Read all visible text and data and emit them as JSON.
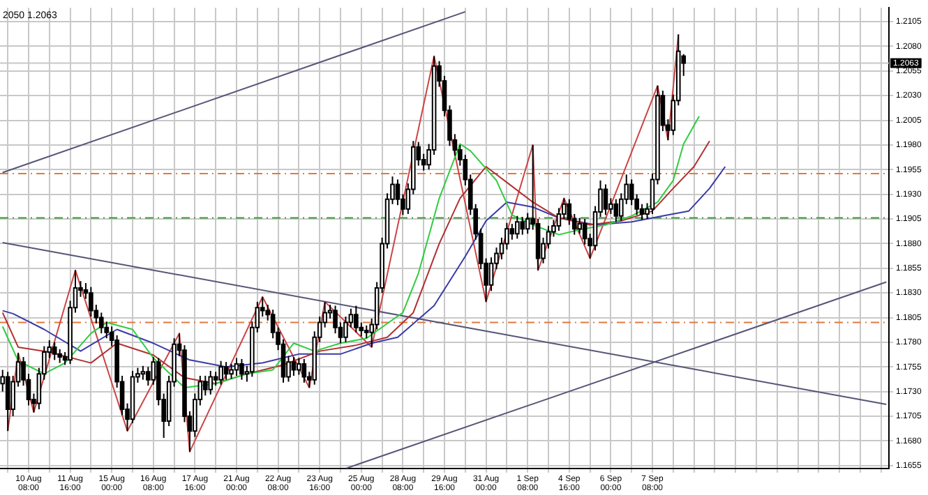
{
  "chart_data": {
    "type": "candlestick",
    "categories": [
      null,
      null,
      null,
      null,
      null,
      "10 Aug 08:00",
      null,
      null,
      null,
      null,
      null,
      null,
      null,
      "11 Aug 16:00",
      null,
      null,
      null,
      null,
      null,
      null,
      null,
      "15 Aug 00:00",
      null,
      null,
      null,
      null,
      null,
      null,
      null,
      "16 Aug 08:00",
      null,
      null,
      null,
      null,
      null,
      null,
      null,
      "17 Aug 16:00",
      null,
      null,
      null,
      null,
      null,
      null,
      null,
      "21 Aug 00:00",
      null,
      null,
      null,
      null,
      null,
      null,
      null,
      "22 Aug 08:00",
      null,
      null,
      null,
      null,
      null,
      null,
      null,
      "23 Aug 16:00",
      null,
      null,
      null,
      null,
      null,
      null,
      null,
      "25 Aug 00:00",
      null,
      null,
      null,
      null,
      null,
      null,
      null,
      "28 Aug 08:00",
      null,
      null,
      null,
      null,
      null,
      null,
      null,
      "29 Aug 16:00",
      null,
      null,
      null,
      null,
      null,
      null,
      null,
      "31 Aug 00:00",
      null,
      null,
      null,
      null,
      null,
      null,
      null,
      "1 Sep 08:00",
      null,
      null,
      null,
      null,
      null,
      null,
      null,
      "4 Sep 16:00",
      null,
      null,
      null,
      null,
      null,
      null,
      null,
      "6 Sep 00:00",
      null,
      null,
      null,
      null,
      null,
      null,
      null,
      "7 Sep 08:00",
      null,
      null,
      null,
      null,
      null,
      null,
      null,
      null,
      null,
      null,
      null,
      null,
      null,
      null,
      null,
      null,
      null,
      null,
      null,
      null,
      null,
      null,
      null,
      null,
      null,
      null,
      null,
      null,
      null,
      null,
      null,
      null,
      null,
      null,
      null,
      null,
      null,
      null,
      null,
      null,
      null,
      null,
      null,
      null,
      null
    ],
    "ohlc": [
      [
        1.1738,
        1.1752,
        1.173,
        1.1745
      ],
      [
        1.1745,
        1.175,
        1.169,
        1.1712
      ],
      [
        1.1712,
        1.1746,
        1.1705,
        1.174
      ],
      [
        1.174,
        1.1769,
        1.1735,
        1.176
      ],
      [
        1.176,
        1.1765,
        1.1736,
        1.1742
      ],
      [
        1.1742,
        1.1748,
        1.1716,
        1.1722
      ],
      [
        1.1722,
        1.1728,
        1.1709,
        1.1718
      ],
      [
        1.1718,
        1.1754,
        1.1712,
        1.1748
      ],
      [
        1.1748,
        1.1776,
        1.1742,
        1.177
      ],
      [
        1.177,
        1.1782,
        1.1764,
        1.1775
      ],
      [
        1.1775,
        1.178,
        1.1762,
        1.1768
      ],
      [
        1.1768,
        1.1773,
        1.1759,
        1.1765
      ],
      [
        1.1765,
        1.177,
        1.1757,
        1.1762
      ],
      [
        1.1762,
        1.1822,
        1.1758,
        1.1815
      ],
      [
        1.1815,
        1.1853,
        1.181,
        1.1835
      ],
      [
        1.1835,
        1.1842,
        1.1826,
        1.1833
      ],
      [
        1.1833,
        1.184,
        1.1824,
        1.183
      ],
      [
        1.183,
        1.1836,
        1.1806,
        1.1812
      ],
      [
        1.1812,
        1.1818,
        1.1799,
        1.1805
      ],
      [
        1.1805,
        1.181,
        1.1789,
        1.1795
      ],
      [
        1.1795,
        1.1801,
        1.1784,
        1.179
      ],
      [
        1.179,
        1.1796,
        1.1776,
        1.1782
      ],
      [
        1.1782,
        1.1787,
        1.1734,
        1.174
      ],
      [
        1.174,
        1.1746,
        1.1706,
        1.1712
      ],
      [
        1.1712,
        1.1718,
        1.169,
        1.1702
      ],
      [
        1.1702,
        1.1751,
        1.1698,
        1.1745
      ],
      [
        1.1745,
        1.1754,
        1.1739,
        1.1748
      ],
      [
        1.1748,
        1.1756,
        1.1742,
        1.175
      ],
      [
        1.175,
        1.1755,
        1.1736,
        1.1742
      ],
      [
        1.1742,
        1.1765,
        1.1737,
        1.176
      ],
      [
        1.176,
        1.1764,
        1.1716,
        1.1722
      ],
      [
        1.1722,
        1.1728,
        1.1683,
        1.17
      ],
      [
        1.17,
        1.1746,
        1.1695,
        1.174
      ],
      [
        1.174,
        1.1784,
        1.1735,
        1.1778
      ],
      [
        1.1778,
        1.1789,
        1.1766,
        1.1772
      ],
      [
        1.1772,
        1.1777,
        1.1699,
        1.1705
      ],
      [
        1.1705,
        1.171,
        1.1669,
        1.169
      ],
      [
        1.169,
        1.1728,
        1.1684,
        1.1722
      ],
      [
        1.1722,
        1.1746,
        1.1716,
        1.174
      ],
      [
        1.174,
        1.1746,
        1.1726,
        1.1732
      ],
      [
        1.1732,
        1.1751,
        1.1727,
        1.1745
      ],
      [
        1.1745,
        1.175,
        1.1736,
        1.1742
      ],
      [
        1.1742,
        1.1761,
        1.1737,
        1.1755
      ],
      [
        1.1755,
        1.176,
        1.1742,
        1.1748
      ],
      [
        1.1748,
        1.1758,
        1.1743,
        1.1752
      ],
      [
        1.1752,
        1.1764,
        1.1746,
        1.1758
      ],
      [
        1.1758,
        1.1763,
        1.1742,
        1.1748
      ],
      [
        1.1748,
        1.1756,
        1.174,
        1.175
      ],
      [
        1.175,
        1.1801,
        1.1745,
        1.1795
      ],
      [
        1.1795,
        1.1821,
        1.179,
        1.1815
      ],
      [
        1.1815,
        1.1826,
        1.1806,
        1.1812
      ],
      [
        1.1812,
        1.1818,
        1.1802,
        1.1808
      ],
      [
        1.1808,
        1.1813,
        1.1784,
        1.179
      ],
      [
        1.179,
        1.1795,
        1.1772,
        1.1778
      ],
      [
        1.1778,
        1.1783,
        1.1739,
        1.1745
      ],
      [
        1.1745,
        1.1766,
        1.174,
        1.176
      ],
      [
        1.176,
        1.1765,
        1.1746,
        1.1752
      ],
      [
        1.1752,
        1.1764,
        1.1747,
        1.1758
      ],
      [
        1.1758,
        1.1763,
        1.1739,
        1.1745
      ],
      [
        1.1745,
        1.175,
        1.1734,
        1.1742
      ],
      [
        1.1742,
        1.1791,
        1.1737,
        1.1785
      ],
      [
        1.1785,
        1.1806,
        1.178,
        1.18
      ],
      [
        1.18,
        1.1821,
        1.1795,
        1.181
      ],
      [
        1.181,
        1.1818,
        1.1804,
        1.1812
      ],
      [
        1.1812,
        1.1817,
        1.1789,
        1.1795
      ],
      [
        1.1795,
        1.18,
        1.1779,
        1.1785
      ],
      [
        1.1785,
        1.1806,
        1.178,
        1.18
      ],
      [
        1.18,
        1.1814,
        1.1795,
        1.1808
      ],
      [
        1.1808,
        1.1817,
        1.179,
        1.1795
      ],
      [
        1.1795,
        1.18,
        1.1786,
        1.1792
      ],
      [
        1.1792,
        1.1797,
        1.1784,
        1.179
      ],
      [
        1.179,
        1.1804,
        1.1775,
        1.1798
      ],
      [
        1.1798,
        1.1841,
        1.1793,
        1.1835
      ],
      [
        1.1835,
        1.1886,
        1.183,
        1.188
      ],
      [
        1.188,
        1.1931,
        1.1875,
        1.1925
      ],
      [
        1.1925,
        1.1948,
        1.192,
        1.194
      ],
      [
        1.194,
        1.1945,
        1.1919,
        1.1925
      ],
      [
        1.1925,
        1.193,
        1.1909,
        1.1915
      ],
      [
        1.1915,
        1.1941,
        1.191,
        1.1935
      ],
      [
        1.1935,
        1.1984,
        1.193,
        1.1978
      ],
      [
        1.1978,
        1.1983,
        1.1959,
        1.1965
      ],
      [
        1.1965,
        1.1971,
        1.1954,
        1.196
      ],
      [
        1.196,
        1.1981,
        1.1955,
        1.1975
      ],
      [
        1.1975,
        1.207,
        1.197,
        1.206
      ],
      [
        1.206,
        1.2065,
        1.2039,
        1.2045
      ],
      [
        1.2045,
        1.205,
        1.2009,
        1.2015
      ],
      [
        1.2015,
        1.202,
        1.1979,
        1.1985
      ],
      [
        1.1985,
        1.1991,
        1.1969,
        1.1975
      ],
      [
        1.1975,
        1.198,
        1.1959,
        1.1965
      ],
      [
        1.1965,
        1.197,
        1.1939,
        1.1945
      ],
      [
        1.1945,
        1.195,
        1.1909,
        1.1915
      ],
      [
        1.1915,
        1.192,
        1.1884,
        1.189
      ],
      [
        1.189,
        1.1895,
        1.1854,
        1.186
      ],
      [
        1.186,
        1.1865,
        1.1821,
        1.1838
      ],
      [
        1.1838,
        1.1866,
        1.1832,
        1.186
      ],
      [
        1.186,
        1.1876,
        1.1854,
        1.187
      ],
      [
        1.187,
        1.1886,
        1.1864,
        1.188
      ],
      [
        1.188,
        1.1901,
        1.1874,
        1.1895
      ],
      [
        1.1895,
        1.19,
        1.1884,
        1.189
      ],
      [
        1.189,
        1.1908,
        1.1885,
        1.1902
      ],
      [
        1.1902,
        1.1907,
        1.1889,
        1.1895
      ],
      [
        1.1895,
        1.1911,
        1.189,
        1.1905
      ],
      [
        1.1905,
        1.198,
        1.1894,
        1.19
      ],
      [
        1.19,
        1.1905,
        1.1853,
        1.1865
      ],
      [
        1.1865,
        1.1886,
        1.186,
        1.188
      ],
      [
        1.188,
        1.1898,
        1.1875,
        1.1892
      ],
      [
        1.1892,
        1.1904,
        1.1887,
        1.1898
      ],
      [
        1.1898,
        1.1916,
        1.1893,
        1.191
      ],
      [
        1.191,
        1.1926,
        1.1905,
        1.192
      ],
      [
        1.192,
        1.1925,
        1.1899,
        1.1905
      ],
      [
        1.1905,
        1.191,
        1.1889,
        1.1895
      ],
      [
        1.1895,
        1.1906,
        1.189,
        1.19
      ],
      [
        1.19,
        1.1905,
        1.1879,
        1.1885
      ],
      [
        1.1885,
        1.189,
        1.1865,
        1.1878
      ],
      [
        1.1878,
        1.1918,
        1.1873,
        1.1912
      ],
      [
        1.1912,
        1.1944,
        1.1907,
        1.1935
      ],
      [
        1.1935,
        1.194,
        1.1909,
        1.1915
      ],
      [
        1.1915,
        1.1926,
        1.191,
        1.192
      ],
      [
        1.192,
        1.1925,
        1.1902,
        1.1908
      ],
      [
        1.1908,
        1.1931,
        1.1903,
        1.1925
      ],
      [
        1.1925,
        1.195,
        1.192,
        1.194
      ],
      [
        1.194,
        1.1945,
        1.1919,
        1.1925
      ],
      [
        1.1925,
        1.193,
        1.1909,
        1.1915
      ],
      [
        1.1915,
        1.192,
        1.1904,
        1.191
      ],
      [
        1.191,
        1.1921,
        1.1905,
        1.1915
      ],
      [
        1.1915,
        1.1951,
        1.191,
        1.1945
      ],
      [
        1.1945,
        1.204,
        1.194,
        1.203
      ],
      [
        1.203,
        1.2035,
        1.1994,
        1.2
      ],
      [
        1.2,
        1.2006,
        1.1985,
        1.1995
      ],
      [
        1.1995,
        1.2031,
        1.199,
        1.2025
      ],
      [
        1.2025,
        1.2092,
        1.202,
        1.2075
      ],
      [
        1.207,
        1.2072,
        1.205,
        1.2063
      ],
      null,
      null,
      null,
      null,
      null,
      null,
      null,
      null,
      null,
      null,
      null,
      null,
      null,
      null,
      null,
      null,
      null,
      null,
      null,
      null,
      null,
      null,
      null,
      null,
      null,
      null,
      null,
      null,
      null,
      null,
      null,
      null,
      null,
      null,
      null,
      null,
      null,
      null,
      null
    ],
    "series": [
      {
        "type": "line",
        "color": "#2ecc40",
        "values": [
          1.1796,
          null,
          null,
          1.1761,
          null,
          null,
          null,
          null,
          1.1748,
          null,
          null,
          null,
          1.1759,
          null,
          null,
          null,
          null,
          1.1789,
          null,
          null,
          1.18,
          null,
          null,
          null,
          null,
          1.1793,
          null,
          null,
          null,
          1.1764,
          null,
          null,
          null,
          null,
          null,
          1.1734,
          null,
          null,
          null,
          null,
          null,
          1.1738,
          null,
          null,
          null,
          null,
          null,
          1.1748,
          null,
          null,
          null,
          null,
          1.1752,
          null,
          null,
          null,
          1.1779,
          null,
          null,
          null,
          1.1771,
          null,
          null,
          null,
          null,
          1.1779,
          null,
          null,
          null,
          null,
          1.1784,
          null,
          null,
          null,
          1.1799,
          null,
          null,
          1.181,
          null,
          null,
          1.185,
          null,
          null,
          null,
          1.1926,
          null,
          null,
          null,
          1.1981,
          null,
          1.1974,
          null,
          null,
          null,
          null,
          1.1944,
          null,
          null,
          1.1909,
          null,
          null,
          null,
          1.1899,
          null,
          null,
          null,
          null,
          1.1889,
          null,
          null,
          null,
          1.1894,
          null,
          null,
          null,
          null,
          1.1899,
          null,
          null,
          null,
          null,
          1.1908,
          null,
          null,
          null,
          null,
          1.1922,
          null,
          null,
          1.1944,
          null,
          1.1981,
          null,
          null,
          1.2009,
          null,
          null,
          null,
          null,
          null,
          null,
          null,
          null,
          null,
          null,
          null,
          null,
          null,
          null,
          null,
          null,
          null,
          null,
          null,
          null,
          null,
          null,
          null,
          null,
          null,
          null,
          null,
          null,
          null,
          null,
          null,
          null,
          null,
          null,
          null,
          null
        ]
      },
      {
        "type": "line",
        "color": "#b03030",
        "values": [
          1.181,
          null,
          null,
          1.1775,
          null,
          null,
          null,
          null,
          null,
          1.177,
          null,
          null,
          null,
          null,
          null,
          null,
          null,
          1.1759,
          null,
          null,
          null,
          null,
          1.1779,
          null,
          null,
          null,
          null,
          null,
          null,
          1.1767,
          null,
          null,
          null,
          null,
          null,
          1.1744,
          null,
          null,
          null,
          null,
          null,
          1.1738,
          null,
          null,
          null,
          null,
          null,
          1.1748,
          null,
          null,
          null,
          null,
          null,
          null,
          1.1757,
          null,
          null,
          null,
          null,
          null,
          null,
          1.1771,
          null,
          null,
          null,
          null,
          null,
          null,
          1.1777,
          null,
          null,
          null,
          null,
          null,
          1.1785,
          null,
          null,
          null,
          null,
          1.181,
          null,
          null,
          null,
          null,
          1.188,
          null,
          null,
          null,
          1.1926,
          null,
          null,
          null,
          null,
          1.1958,
          null,
          null,
          null,
          1.1942,
          null,
          null,
          null,
          null,
          1.1922,
          null,
          null,
          null,
          null,
          1.1906,
          null,
          null,
          null,
          null,
          null,
          1.1899,
          null,
          null,
          null,
          null,
          null,
          1.1903,
          null,
          null,
          null,
          null,
          null,
          1.1913,
          null,
          null,
          null,
          1.1936,
          null,
          null,
          null,
          1.1958,
          null,
          null,
          1.1984,
          null,
          null,
          null,
          null,
          null,
          null,
          null,
          null,
          null,
          null,
          null,
          null,
          null,
          null,
          null,
          null,
          null,
          null,
          null,
          null,
          null,
          null,
          null,
          null,
          null,
          null,
          null,
          null,
          null,
          null,
          null,
          null,
          null,
          null
        ]
      },
      {
        "type": "line",
        "color": "#3a3aa8",
        "values": [
          1.1812,
          null,
          1.1809,
          null,
          null,
          null,
          null,
          null,
          1.1793,
          null,
          null,
          null,
          null,
          null,
          null,
          1.1771,
          null,
          null,
          null,
          null,
          null,
          null,
          1.1793,
          null,
          null,
          null,
          null,
          null,
          null,
          1.1779,
          null,
          null,
          null,
          null,
          null,
          null,
          1.1762,
          null,
          null,
          null,
          null,
          null,
          null,
          1.1755,
          null,
          null,
          null,
          null,
          null,
          null,
          1.1759,
          null,
          null,
          null,
          null,
          null,
          null,
          1.1768,
          null,
          null,
          null,
          null,
          null,
          null,
          null,
          1.1768,
          null,
          null,
          null,
          null,
          null,
          1.1779,
          null,
          null,
          null,
          null,
          1.1785,
          null,
          null,
          null,
          null,
          null,
          null,
          1.1817,
          null,
          null,
          null,
          null,
          null,
          1.1867,
          null,
          null,
          null,
          1.1903,
          null,
          null,
          null,
          1.1922,
          null,
          null,
          null,
          null,
          1.1917,
          null,
          null,
          null,
          null,
          1.1906,
          null,
          null,
          null,
          null,
          null,
          null,
          1.1899,
          null,
          null,
          null,
          null,
          null,
          null,
          1.1902,
          null,
          null,
          null,
          null,
          null,
          null,
          1.1909,
          null,
          null,
          null,
          1.1913,
          null,
          null,
          null,
          1.1936,
          null,
          null,
          1.1958,
          null,
          null,
          null,
          null,
          null,
          null,
          null,
          null,
          null,
          null,
          null,
          null,
          null,
          null,
          null,
          null,
          null,
          null,
          null,
          null,
          null,
          null,
          null,
          null,
          null,
          null,
          null,
          null,
          null,
          null,
          null
        ]
      },
      {
        "type": "line",
        "color": "#cc4444",
        "values": [
          null,
          1.169,
          null,
          1.1769,
          null,
          null,
          1.1709,
          null,
          null,
          null,
          null,
          null,
          null,
          null,
          1.1853,
          null,
          null,
          null,
          null,
          null,
          null,
          null,
          null,
          null,
          1.169,
          null,
          null,
          null,
          null,
          null,
          null,
          null,
          null,
          null,
          1.1789,
          null,
          1.1669,
          null,
          null,
          null,
          null,
          null,
          null,
          null,
          null,
          null,
          null,
          null,
          null,
          null,
          1.1826,
          null,
          null,
          null,
          null,
          null,
          null,
          null,
          null,
          1.1734,
          null,
          null,
          1.1821,
          null,
          null,
          null,
          null,
          null,
          null,
          null,
          null,
          1.1775,
          null,
          null,
          null,
          null,
          null,
          null,
          null,
          null,
          null,
          null,
          null,
          1.207,
          null,
          null,
          null,
          null,
          null,
          null,
          null,
          null,
          null,
          1.1821,
          null,
          null,
          null,
          null,
          null,
          null,
          null,
          null,
          1.198,
          1.1853,
          null,
          null,
          null,
          null,
          1.1926,
          null,
          null,
          null,
          null,
          1.1865,
          null,
          null,
          null,
          null,
          null,
          null,
          null,
          null,
          null,
          null,
          null,
          null,
          1.204,
          null,
          1.1985,
          null,
          1.2092,
          null,
          null,
          null,
          null,
          null,
          null,
          null,
          null,
          null,
          null,
          null,
          null,
          null,
          null,
          null,
          null,
          null,
          null,
          null,
          null,
          null,
          null,
          null,
          null,
          null,
          null,
          null,
          null,
          null,
          null,
          null,
          null,
          null,
          null,
          null,
          null,
          null,
          null,
          null,
          null
        ]
      },
      {
        "type": "line",
        "color": "#555577",
        "values": [
          1.1952,
          null,
          null,
          null,
          null,
          null,
          null,
          null,
          null,
          null,
          null,
          null,
          null,
          null,
          null,
          null,
          null,
          null,
          null,
          null,
          null,
          null,
          null,
          null,
          null,
          null,
          null,
          null,
          null,
          null,
          null,
          null,
          null,
          null,
          null,
          null,
          null,
          null,
          null,
          null,
          null,
          null,
          null,
          null,
          null,
          null,
          null,
          null,
          null,
          null,
          null,
          null,
          null,
          null,
          null,
          null,
          null,
          null,
          null,
          null,
          null,
          null,
          null,
          null,
          null,
          null,
          null,
          null,
          null,
          null,
          null,
          null,
          null,
          null,
          null,
          null,
          null,
          null,
          null,
          null,
          null,
          null,
          null,
          null,
          null,
          null,
          null,
          null,
          null,
          1.2115,
          null,
          null,
          null,
          null,
          null,
          null,
          null,
          null,
          null,
          null,
          null,
          null,
          null,
          null,
          null,
          null,
          null,
          null,
          null,
          null,
          null,
          null,
          null,
          null,
          null,
          null,
          null,
          null,
          null,
          null,
          null,
          null,
          null,
          null,
          null,
          null,
          null,
          null,
          null,
          null,
          null,
          null,
          null,
          null,
          null,
          null,
          null,
          null,
          null,
          null,
          null,
          null,
          null,
          null,
          null,
          null,
          null,
          null,
          null,
          null,
          null,
          null,
          null,
          null,
          null,
          null,
          null,
          null,
          null,
          null,
          null,
          null,
          null,
          null,
          null,
          null,
          null,
          null,
          null,
          null,
          null
        ]
      },
      {
        "type": "line",
        "color": "#555577",
        "values": [
          1.1881,
          null,
          null,
          null,
          null,
          null,
          null,
          null,
          null,
          null,
          null,
          null,
          null,
          null,
          null,
          null,
          null,
          null,
          null,
          null,
          null,
          null,
          null,
          null,
          null,
          null,
          null,
          null,
          null,
          null,
          null,
          null,
          null,
          null,
          null,
          null,
          null,
          null,
          null,
          null,
          null,
          null,
          null,
          null,
          null,
          null,
          null,
          null,
          null,
          null,
          null,
          null,
          null,
          null,
          null,
          null,
          null,
          null,
          null,
          null,
          null,
          null,
          null,
          null,
          null,
          null,
          null,
          null,
          null,
          null,
          null,
          null,
          null,
          null,
          null,
          null,
          null,
          null,
          null,
          null,
          null,
          null,
          null,
          null,
          null,
          null,
          null,
          null,
          null,
          null,
          null,
          null,
          null,
          null,
          null,
          null,
          null,
          null,
          null,
          null,
          null,
          null,
          null,
          null,
          null,
          null,
          null,
          null,
          null,
          null,
          null,
          null,
          null,
          null,
          null,
          null,
          null,
          null,
          null,
          null,
          null,
          null,
          null,
          null,
          null,
          null,
          null,
          null,
          null,
          null,
          null,
          null,
          null,
          null,
          null,
          null,
          null,
          null,
          null,
          null,
          null,
          null,
          null,
          null,
          null,
          null,
          null,
          null,
          null,
          null,
          null,
          null,
          null,
          null,
          null,
          null,
          null,
          null,
          null,
          null,
          null,
          null,
          null,
          null,
          null,
          null,
          null,
          null,
          null,
          null,
          1.1717
        ]
      },
      {
        "type": "line",
        "color": "#555577",
        "values": [
          null,
          null,
          null,
          null,
          null,
          null,
          null,
          null,
          null,
          null,
          null,
          null,
          null,
          null,
          null,
          null,
          null,
          null,
          null,
          null,
          null,
          null,
          null,
          null,
          null,
          null,
          null,
          null,
          null,
          null,
          null,
          null,
          null,
          null,
          null,
          null,
          null,
          null,
          null,
          null,
          null,
          null,
          null,
          null,
          null,
          null,
          null,
          null,
          null,
          null,
          null,
          null,
          null,
          null,
          null,
          null,
          null,
          null,
          null,
          null,
          null,
          null,
          null,
          null,
          null,
          null,
          1.1652,
          null,
          null,
          null,
          null,
          null,
          null,
          null,
          null,
          null,
          null,
          null,
          null,
          null,
          null,
          null,
          null,
          null,
          null,
          null,
          null,
          null,
          null,
          null,
          null,
          null,
          null,
          null,
          null,
          null,
          null,
          null,
          null,
          null,
          null,
          null,
          null,
          null,
          null,
          null,
          null,
          null,
          null,
          null,
          null,
          null,
          null,
          null,
          null,
          null,
          null,
          null,
          null,
          null,
          null,
          null,
          null,
          null,
          null,
          null,
          null,
          null,
          null,
          null,
          null,
          null,
          null,
          null,
          null,
          null,
          null,
          null,
          null,
          null,
          null,
          null,
          null,
          null,
          null,
          null,
          null,
          null,
          null,
          null,
          null,
          null,
          null,
          null,
          null,
          null,
          null,
          null,
          null,
          null,
          null,
          null,
          null,
          null,
          null,
          null,
          null,
          null,
          null,
          null,
          1.1841
        ]
      }
    ],
    "ylim": [
      1.1652,
      1.2119
    ],
    "yticks": [
      1.1655,
      {
        "value": 1.168,
        "label": "1.1680"
      },
      1.1705,
      {
        "value": 1.173,
        "label": "1.1730"
      },
      1.1755,
      {
        "value": 1.178,
        "label": "1.1780"
      },
      1.1805,
      {
        "value": 1.183,
        "label": "1.1830"
      },
      1.1855,
      {
        "value": 1.188,
        "label": "1.1880"
      },
      1.1905,
      {
        "value": 1.193,
        "label": "1.1930"
      },
      1.1955,
      {
        "value": 1.198,
        "label": "1.1980"
      },
      1.2005,
      {
        "value": 1.203,
        "label": "1.2030"
      },
      1.2055,
      {
        "value": 1.208,
        "label": "1.2080"
      },
      1.2105
    ],
    "grid": true,
    "marker": "none",
    "ref_lines": [
      {
        "axis": "y",
        "value": 1.1951,
        "color": "#e07a40",
        "line_style": "dashed"
      },
      {
        "axis": "y",
        "value": 1.1906,
        "color": "#3a9a3a",
        "line_style": "dashed"
      },
      {
        "axis": "y",
        "value": 1.18,
        "color": "#e07a40",
        "line_style": "dashed"
      },
      {
        "axis": "y",
        "value": 1.2063,
        "label": "1.2063",
        "color": "#c8c8c8",
        "line_style": "solid"
      }
    ],
    "annotations": [
      "2050 1.2063"
    ]
  }
}
